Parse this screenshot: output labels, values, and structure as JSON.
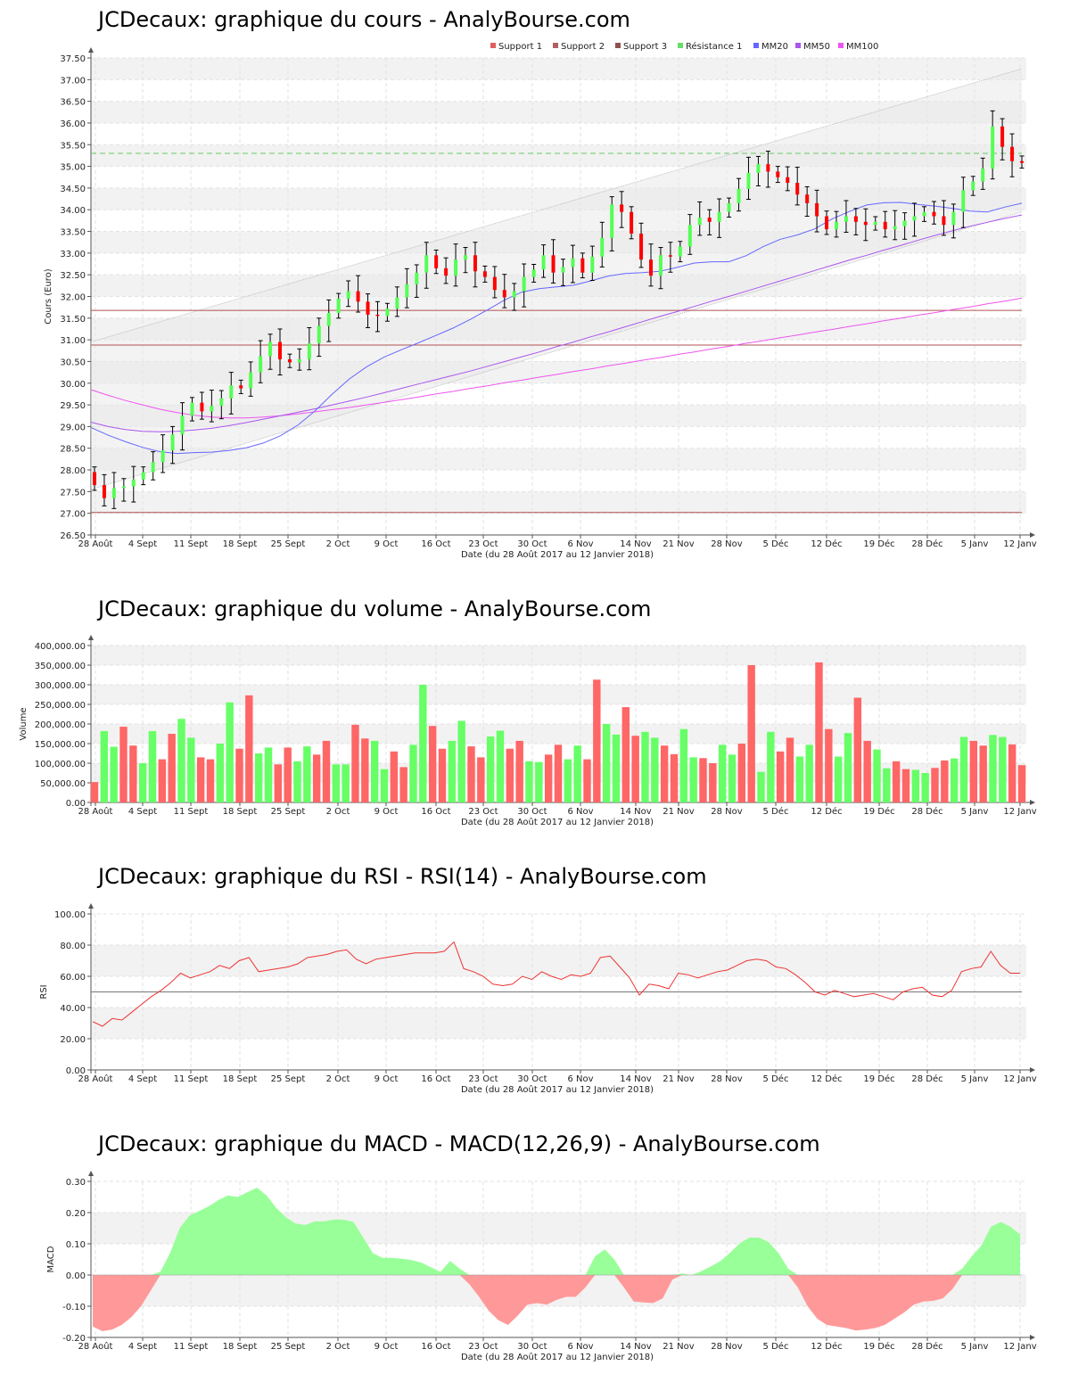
{
  "x_ticks": [
    "28 Août",
    "4 Sept",
    "11 Sept",
    "18 Sept",
    "25 Sept",
    "2 Oct",
    "9 Oct",
    "16 Oct",
    "23 Oct",
    "30 Oct",
    "6 Nov",
    "14 Nov",
    "21 Nov",
    "28 Nov",
    "5 Déc",
    "12 Déc",
    "19 Déc",
    "28 Déc",
    "5 Janv",
    "12 Janv"
  ],
  "xlabel": "Date (du 28 Août 2017 au 12 Janvier 2018)",
  "colors": {
    "up": "#55ff55",
    "down": "#ff0000",
    "vol_up": "#66ff66",
    "vol_down": "#ff6666",
    "mm20": "#6666ff",
    "mm50": "#aa55ee",
    "mm100": "#ee55ee",
    "support": "#b05050",
    "resistance": "#66cc66",
    "rsi": "#ee3333",
    "macd_pos": "#99ff99",
    "macd_neg": "#ff9999"
  },
  "chart_data": [
    {
      "type": "candlestick",
      "title": "JCDecaux: graphique du cours - AnalyBourse.com",
      "ylabel": "Cours (Euro)",
      "ylim": [
        26.5,
        37.5
      ],
      "yticks": [
        "26.50",
        "27.00",
        "27.50",
        "28.00",
        "28.50",
        "29.00",
        "29.50",
        "30.00",
        "30.50",
        "31.00",
        "31.50",
        "32.00",
        "32.50",
        "33.00",
        "33.50",
        "34.00",
        "34.50",
        "35.00",
        "35.50",
        "36.00",
        "36.50",
        "37.00",
        "37.50"
      ],
      "legend": [
        {
          "name": "Support 1",
          "color": "#e06060"
        },
        {
          "name": "Support 2",
          "color": "#b06060"
        },
        {
          "name": "Support 3",
          "color": "#905050"
        },
        {
          "name": "Résistance 1",
          "color": "#66dd66"
        },
        {
          "name": "MM20",
          "color": "#6666ff"
        },
        {
          "name": "MM50",
          "color": "#aa55ee"
        },
        {
          "name": "MM100",
          "color": "#ee55ee"
        }
      ],
      "support_lines": [
        31.68,
        30.88,
        27.02
      ],
      "resistance_line": 35.3,
      "channel_upper": [
        30.95,
        37.25
      ],
      "channel_lower": [
        27.55,
        33.95
      ],
      "close": [
        27.65,
        27.35,
        27.58,
        27.62,
        27.78,
        27.95,
        28.18,
        28.45,
        28.82,
        29.25,
        29.55,
        29.35,
        29.48,
        29.65,
        29.95,
        29.88,
        30.25,
        30.62,
        30.95,
        30.55,
        30.48,
        30.55,
        30.92,
        31.32,
        31.62,
        31.95,
        32.12,
        31.88,
        31.58,
        31.55,
        31.72,
        31.98,
        32.28,
        32.55,
        32.95,
        32.65,
        32.48,
        32.85,
        32.95,
        32.58,
        32.45,
        32.15,
        31.98,
        32.12,
        32.45,
        32.62,
        32.95,
        32.55,
        32.68,
        32.88,
        32.55,
        32.92,
        33.35,
        34.12,
        33.95,
        33.45,
        32.85,
        32.48,
        32.95,
        32.92,
        33.15,
        33.65,
        33.82,
        33.72,
        33.95,
        34.15,
        34.48,
        34.85,
        35.05,
        34.88,
        34.75,
        34.62,
        34.35,
        34.15,
        33.85,
        33.55,
        33.72,
        33.85,
        33.72,
        33.65,
        33.72,
        33.55,
        33.62,
        33.75,
        33.85,
        33.95,
        33.85,
        33.65,
        33.95,
        34.45,
        34.65,
        34.95,
        35.92,
        35.45,
        35.12,
        35.08
      ],
      "mm20": [
        28.98,
        28.8,
        28.65,
        28.52,
        28.42,
        28.38,
        28.4,
        28.41,
        28.45,
        28.51,
        28.62,
        28.79,
        29.03,
        29.36,
        29.75,
        30.1,
        30.38,
        30.6,
        30.77,
        30.93,
        31.1,
        31.27,
        31.47,
        31.69,
        31.92,
        32.1,
        32.18,
        32.22,
        32.26,
        32.36,
        32.47,
        32.53,
        32.55,
        32.58,
        32.67,
        32.77,
        32.8,
        32.8,
        32.94,
        33.15,
        33.32,
        33.42,
        33.56,
        33.79,
        33.96,
        34.11,
        34.16,
        34.17,
        34.12,
        34.08,
        34.03,
        33.97,
        33.95,
        34.06,
        34.15
      ],
      "mm50": [
        29.1,
        29.0,
        28.93,
        28.89,
        28.88,
        28.89,
        28.92,
        28.96,
        29.02,
        29.09,
        29.17,
        29.25,
        29.33,
        29.41,
        29.5,
        29.59,
        29.68,
        29.78,
        29.88,
        29.98,
        30.08,
        30.18,
        30.28,
        30.39,
        30.5,
        30.61,
        30.72,
        30.84,
        30.95,
        31.07,
        31.18,
        31.3,
        31.42,
        31.54,
        31.65,
        31.77,
        31.89,
        32.0,
        32.12,
        32.24,
        32.36,
        32.48,
        32.6,
        32.72,
        32.84,
        32.95,
        33.07,
        33.18,
        33.3,
        33.41,
        33.52,
        33.62,
        33.71,
        33.8,
        33.88
      ],
      "mm100": [
        29.85,
        29.72,
        29.6,
        29.5,
        29.4,
        29.32,
        29.26,
        29.22,
        29.2,
        29.2,
        29.22,
        29.25,
        29.29,
        29.34,
        29.39,
        29.44,
        29.5,
        29.56,
        29.62,
        29.68,
        29.75,
        29.81,
        29.88,
        29.94,
        30.01,
        30.07,
        30.14,
        30.2,
        30.27,
        30.33,
        30.4,
        30.46,
        30.53,
        30.59,
        30.66,
        30.72,
        30.79,
        30.85,
        30.92,
        30.98,
        31.05,
        31.11,
        31.18,
        31.24,
        31.31,
        31.37,
        31.44,
        31.5,
        31.57,
        31.63,
        31.7,
        31.76,
        31.83,
        31.89,
        31.96
      ]
    },
    {
      "type": "bar",
      "title": "JCDecaux: graphique du volume - AnalyBourse.com",
      "ylabel": "Volume",
      "ylim": [
        0,
        400000
      ],
      "yticks": [
        "0.00",
        "50,000.00",
        "100,000.00",
        "150,000.00",
        "200,000.00",
        "250,000.00",
        "300,000.00",
        "350,000.00",
        "400,000.00"
      ],
      "values": [
        52000,
        182000,
        142000,
        193000,
        145000,
        100000,
        182000,
        110000,
        175000,
        213000,
        165000,
        115000,
        110000,
        150000,
        255000,
        137000,
        273000,
        125000,
        140000,
        97000,
        140000,
        105000,
        143000,
        122000,
        157000,
        97000,
        97000,
        198000,
        163000,
        157000,
        85000,
        130000,
        90000,
        147000,
        300000,
        195000,
        137000,
        157000,
        208000,
        143000,
        115000,
        168000,
        183000,
        137000,
        157000,
        105000,
        103000,
        122000,
        147000,
        110000,
        145000,
        110000,
        313000,
        200000,
        173000,
        243000,
        170000,
        180000,
        165000,
        145000,
        123000,
        187000,
        115000,
        113000,
        100000,
        147000,
        122000,
        150000,
        350000,
        78000,
        180000,
        130000,
        165000,
        117000,
        147000,
        357000,
        187000,
        117000,
        177000,
        267000,
        157000,
        135000,
        87000,
        105000,
        85000,
        83000,
        75000,
        88000,
        107000,
        112000,
        167000,
        157000,
        145000,
        172000,
        167000,
        148000,
        95000
      ]
    },
    {
      "type": "line",
      "title": "JCDecaux: graphique du RSI - RSI(14) - AnalyBourse.com",
      "ylabel": "RSI",
      "ylim": [
        0,
        100
      ],
      "yticks": [
        "0.00",
        "20.00",
        "40.00",
        "60.00",
        "80.00",
        "100.00"
      ],
      "reference": 50,
      "values": [
        31,
        28,
        33,
        32,
        37,
        42,
        47,
        51,
        56,
        62,
        59,
        61,
        63,
        67,
        65,
        70,
        72,
        63,
        64,
        65,
        66,
        68,
        72,
        73,
        74,
        76,
        77,
        71,
        68,
        71,
        72,
        73,
        74,
        75,
        75,
        75,
        76,
        82,
        65,
        63,
        60,
        55,
        54,
        55,
        60,
        58,
        63,
        60,
        58,
        61,
        60,
        62,
        72,
        73,
        66,
        59,
        48,
        55,
        54,
        52,
        62,
        61,
        59,
        61,
        63,
        64,
        67,
        70,
        71,
        70,
        66,
        65,
        61,
        56,
        50,
        48,
        51,
        49,
        47,
        48,
        49,
        47,
        45,
        50,
        52,
        53,
        48,
        47,
        51,
        63,
        65,
        66,
        76,
        67,
        62,
        62
      ]
    },
    {
      "type": "area",
      "title": "JCDecaux: graphique du MACD - MACD(12,26,9) - AnalyBourse.com",
      "ylabel": "MACD",
      "ylim": [
        -0.2,
        0.3
      ],
      "yticks": [
        "-0.20",
        "-0.10",
        "0.00",
        "0.10",
        "0.20",
        "0.30"
      ],
      "values": [
        -0.165,
        -0.18,
        -0.175,
        -0.16,
        -0.135,
        -0.1,
        -0.05,
        0.01,
        0.07,
        0.15,
        0.19,
        0.205,
        0.22,
        0.24,
        0.255,
        0.25,
        0.265,
        0.28,
        0.255,
        0.215,
        0.185,
        0.165,
        0.16,
        0.172,
        0.172,
        0.178,
        0.177,
        0.17,
        0.12,
        0.07,
        0.055,
        0.055,
        0.052,
        0.048,
        0.04,
        0.025,
        0.01,
        0.045,
        0.02,
        -0.03,
        -0.07,
        -0.115,
        -0.145,
        -0.16,
        -0.13,
        -0.095,
        -0.09,
        -0.095,
        -0.08,
        -0.07,
        -0.07,
        -0.04,
        0.06,
        0.082,
        0.05,
        -0.04,
        -0.085,
        -0.088,
        -0.09,
        -0.075,
        -0.015,
        0.005,
        0.0,
        0.012,
        0.028,
        0.045,
        0.072,
        0.102,
        0.12,
        0.12,
        0.105,
        0.07,
        0.02,
        -0.04,
        -0.1,
        -0.14,
        -0.16,
        -0.165,
        -0.17,
        -0.178,
        -0.175,
        -0.17,
        -0.16,
        -0.14,
        -0.12,
        -0.095,
        -0.085,
        -0.083,
        -0.075,
        -0.045,
        0.02,
        0.06,
        0.095,
        0.155,
        0.17,
        0.155,
        0.13
      ]
    }
  ]
}
